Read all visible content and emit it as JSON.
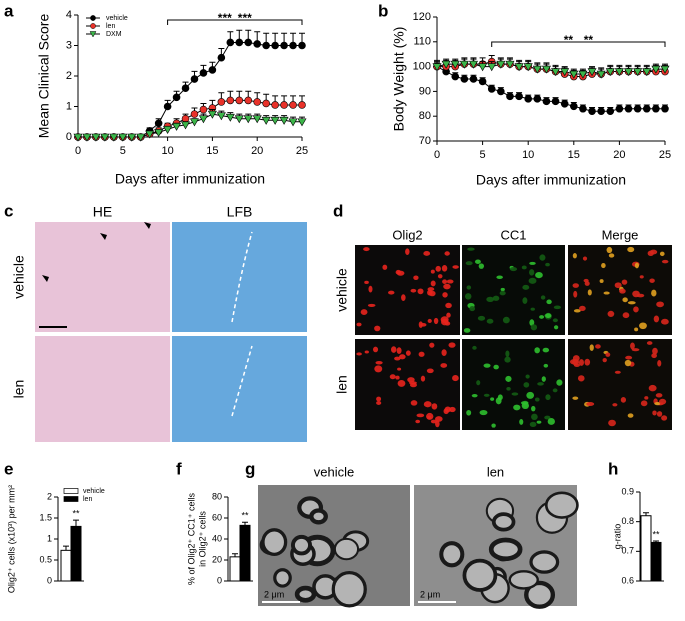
{
  "chart_data": [
    {
      "type": "line",
      "panel": "a",
      "y_label": "Mean Clinical Score",
      "x_label": "Days after immunization",
      "x": [
        0,
        1,
        2,
        3,
        4,
        5,
        6,
        7,
        8,
        9,
        10,
        11,
        12,
        13,
        14,
        15,
        16,
        17,
        18,
        19,
        20,
        21,
        22,
        23,
        24,
        25
      ],
      "xlim": [
        0,
        25
      ],
      "xticks": [
        0,
        5,
        10,
        15,
        20,
        25
      ],
      "ylim": [
        0,
        4
      ],
      "yticks": [
        0,
        1,
        2,
        3,
        4
      ],
      "legend": "upper left",
      "series": [
        {
          "name": "vehicle",
          "color": "#000000",
          "marker": "circle",
          "values": [
            0,
            0,
            0,
            0,
            0,
            0,
            0,
            0,
            0.2,
            0.45,
            1.0,
            1.3,
            1.6,
            1.9,
            2.1,
            2.2,
            2.6,
            3.1,
            3.1,
            3.1,
            3.05,
            3.0,
            3.0,
            3.0,
            3.0,
            3.0
          ],
          "errors": [
            0,
            0,
            0,
            0,
            0,
            0,
            0,
            0,
            0.1,
            0.15,
            0.2,
            0.2,
            0.2,
            0.25,
            0.25,
            0.25,
            0.3,
            0.35,
            0.4,
            0.4,
            0.4,
            0.4,
            0.4,
            0.4,
            0.4,
            0.4
          ]
        },
        {
          "name": "len",
          "color": "#e8322a",
          "marker": "circle",
          "values": [
            0,
            0,
            0,
            0,
            0,
            0,
            0,
            0,
            0.1,
            0.2,
            0.35,
            0.45,
            0.6,
            0.75,
            0.9,
            0.95,
            1.15,
            1.2,
            1.2,
            1.2,
            1.15,
            1.1,
            1.05,
            1.05,
            1.05,
            1.05
          ],
          "errors": [
            0,
            0,
            0,
            0,
            0,
            0,
            0,
            0,
            0.05,
            0.1,
            0.1,
            0.15,
            0.15,
            0.2,
            0.2,
            0.25,
            0.3,
            0.3,
            0.3,
            0.3,
            0.3,
            0.3,
            0.3,
            0.3,
            0.3,
            0.3
          ]
        },
        {
          "name": "DXM",
          "color": "#3cb54a",
          "marker": "triangle",
          "values": [
            0,
            0,
            0,
            0,
            0,
            0,
            0,
            0,
            0.1,
            0.15,
            0.25,
            0.35,
            0.4,
            0.5,
            0.6,
            0.75,
            0.7,
            0.65,
            0.6,
            0.6,
            0.6,
            0.55,
            0.55,
            0.55,
            0.5,
            0.5
          ],
          "errors": [
            0,
            0,
            0,
            0,
            0,
            0,
            0,
            0,
            0.05,
            0.05,
            0.1,
            0.1,
            0.1,
            0.1,
            0.15,
            0.15,
            0.15,
            0.15,
            0.15,
            0.15,
            0.15,
            0.15,
            0.15,
            0.15,
            0.15,
            0.15
          ]
        }
      ],
      "annotations": [
        {
          "text": "***",
          "color": "#33cc33"
        },
        {
          "text": "***",
          "color": "#e8322a"
        }
      ]
    },
    {
      "type": "line",
      "panel": "b",
      "y_label": "Body Weight (%)",
      "x_label": "Days after immunization",
      "x": [
        0,
        1,
        2,
        3,
        4,
        5,
        6,
        7,
        8,
        9,
        10,
        11,
        12,
        13,
        14,
        15,
        16,
        17,
        18,
        19,
        20,
        21,
        22,
        23,
        24,
        25
      ],
      "xlim": [
        0,
        25
      ],
      "xticks": [
        0,
        5,
        10,
        15,
        20,
        25
      ],
      "ylim": [
        70,
        120
      ],
      "yticks": [
        70,
        80,
        90,
        100,
        110,
        120
      ],
      "series": [
        {
          "name": "vehicle",
          "color": "#000000",
          "marker": "circle",
          "values": [
            100,
            98,
            96,
            95,
            95,
            94,
            91,
            90,
            88,
            88,
            87,
            87,
            86,
            86,
            85,
            84,
            83,
            82,
            82,
            82,
            83,
            83,
            83,
            83,
            83,
            83
          ],
          "errors": [
            1.5,
            1.5,
            1.5,
            1.5,
            1.5,
            1.5,
            1.5,
            1.5,
            1.5,
            1.5,
            1.5,
            1.5,
            1.5,
            1.5,
            1.5,
            1.5,
            1.5,
            1.5,
            1.5,
            1.5,
            1.5,
            1.5,
            1.5,
            1.5,
            1.5,
            1.5
          ]
        },
        {
          "name": "len",
          "color": "#e8322a",
          "marker": "circle",
          "values": [
            100,
            100,
            100,
            101,
            101,
            101,
            102,
            101,
            101,
            100,
            100,
            99,
            99,
            98,
            97,
            96,
            96,
            97,
            97,
            98,
            98,
            98,
            98,
            98,
            98,
            98
          ],
          "errors": [
            2.5,
            2.5,
            2.5,
            2.5,
            2.5,
            2.5,
            2.5,
            2.5,
            2.5,
            2.5,
            2.5,
            2.5,
            2.5,
            2.5,
            2.5,
            2.5,
            2.5,
            2.5,
            2.5,
            2.5,
            2.5,
            2.5,
            2.5,
            2.5,
            2.5,
            2.5
          ]
        },
        {
          "name": "DXM",
          "color": "#3cb54a",
          "marker": "triangle",
          "values": [
            100,
            101,
            101,
            101,
            101,
            100,
            100,
            101,
            101,
            100,
            100,
            99,
            99,
            98,
            98,
            97,
            97,
            98,
            97,
            98,
            98,
            98,
            98,
            98,
            99,
            99
          ],
          "errors": [
            2,
            2,
            2,
            2,
            2,
            2,
            2,
            2,
            2,
            2,
            2,
            2,
            2,
            2,
            2,
            2,
            2,
            2,
            2,
            2,
            2,
            2,
            2,
            2,
            2,
            2
          ]
        }
      ],
      "annotations": [
        {
          "text": "**",
          "color": "#33cc33"
        },
        {
          "text": "**",
          "color": "#e8322a"
        }
      ]
    },
    {
      "type": "bar",
      "panel": "e",
      "y_label": "Olig2⁺ cells (x10³) per mm²",
      "ylim": [
        0,
        2
      ],
      "yticks": [
        0,
        0.5,
        1,
        1.5,
        2
      ],
      "series": [
        {
          "name": "vehicle",
          "color": "#ffffff",
          "values": [
            0.73
          ],
          "errors": [
            0.1
          ]
        },
        {
          "name": "len",
          "color": "#000000",
          "values": [
            1.3
          ],
          "errors": [
            0.15
          ]
        }
      ],
      "annotations": [
        {
          "text": "**",
          "color": "#000000"
        }
      ]
    },
    {
      "type": "bar",
      "panel": "f",
      "y_label": [
        "% of Olig2⁺ CC1⁺ cells",
        "in Olig2⁺ cells"
      ],
      "ylim": [
        0,
        80
      ],
      "yticks": [
        0,
        20,
        40,
        60,
        80
      ],
      "series": [
        {
          "color": "#ffffff",
          "values": [
            23
          ],
          "errors": [
            3
          ]
        },
        {
          "color": "#000000",
          "values": [
            53
          ],
          "errors": [
            3
          ]
        }
      ],
      "annotations": [
        {
          "text": "**",
          "color": "#000000"
        }
      ]
    },
    {
      "type": "bar",
      "panel": "h",
      "y_label": "g-ratio",
      "ylim": [
        0.6,
        0.9
      ],
      "yticks": [
        0.6,
        0.7,
        0.8,
        0.9
      ],
      "series": [
        {
          "color": "#ffffff",
          "values": [
            0.82
          ],
          "errors": [
            0.01
          ]
        },
        {
          "color": "#000000",
          "values": [
            0.73
          ],
          "errors": [
            0.005
          ]
        }
      ],
      "annotations": [
        {
          "text": "**",
          "color": "#000000"
        }
      ]
    }
  ],
  "image_panels": [
    {
      "panel": "c",
      "columns": [
        {
          "text": "HE",
          "color": "#c13fa0"
        },
        {
          "text": "LFB",
          "color": "#2e7fcf"
        }
      ],
      "rows": [
        "vehicle",
        "len"
      ]
    },
    {
      "panel": "d",
      "columns": [
        {
          "text": "Olig2",
          "color": "#e02020"
        },
        {
          "text": "CC1",
          "color": "#22bb22"
        },
        {
          "text": "Merge",
          "color": "#000000"
        }
      ],
      "rows": [
        "vehicle",
        "len"
      ]
    },
    {
      "panel": "g",
      "columns": [
        {
          "text": "vehicle",
          "color": "#000000"
        },
        {
          "text": "len",
          "color": "#000000"
        }
      ],
      "scale_bar": "2 μm"
    }
  ]
}
